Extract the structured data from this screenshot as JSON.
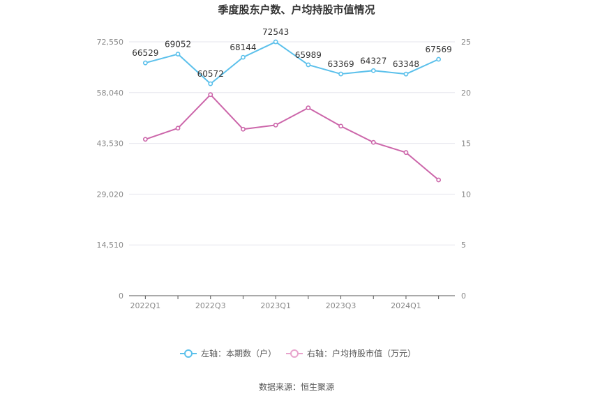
{
  "chart_data": {
    "type": "line",
    "title": "季度股东户数、户均持股市值情况",
    "categories": [
      "2022Q1",
      "2022Q2",
      "2022Q3",
      "2022Q4",
      "2023Q1",
      "2023Q2",
      "2023Q3",
      "2023Q4",
      "2024Q1",
      "2024Q2"
    ],
    "x_tick_labels": [
      "2022Q1",
      "2022Q3",
      "2023Q1",
      "2023Q3",
      "2024Q1"
    ],
    "left_axis": {
      "min": 0,
      "max": 72550,
      "ticks": [
        "0",
        "14,510",
        "29,020",
        "43,530",
        "58,040",
        "72,550"
      ]
    },
    "right_axis": {
      "min": 0,
      "max": 25,
      "ticks": [
        "0",
        "5",
        "10",
        "15",
        "20",
        "25"
      ]
    },
    "series": [
      {
        "name": "左轴：本期数（户）",
        "axis": "left",
        "color": "#5bc0eb",
        "values": [
          66529,
          69052,
          60572,
          68144,
          72543,
          65989,
          63369,
          64327,
          63348,
          67569
        ],
        "labels": [
          "66529",
          "69052",
          "60572",
          "68144",
          "72543",
          "65989",
          "63369",
          "64327",
          "63348",
          "67569"
        ]
      },
      {
        "name": "右轴：户均持股市值（万元）",
        "axis": "right",
        "color": "#cc66aa",
        "values": [
          15.4,
          16.5,
          19.8,
          16.4,
          16.8,
          18.5,
          16.7,
          15.1,
          14.1,
          11.4
        ]
      }
    ],
    "grid": true,
    "legend_position": "bottom-center"
  },
  "source_text": "数据来源：恒生聚源"
}
